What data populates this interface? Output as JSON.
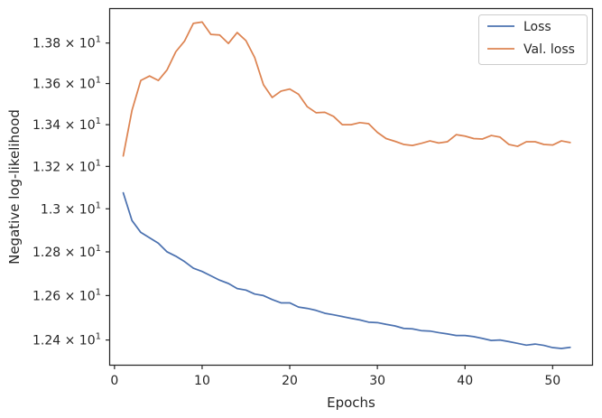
{
  "chart_data": {
    "type": "line",
    "title": "",
    "xlabel": "Epochs",
    "ylabel": "Negative log-likelihood",
    "x": [
      1,
      2,
      3,
      4,
      5,
      6,
      7,
      8,
      9,
      10,
      11,
      12,
      13,
      14,
      15,
      16,
      17,
      18,
      19,
      20,
      21,
      22,
      23,
      24,
      25,
      26,
      27,
      28,
      29,
      30,
      31,
      32,
      33,
      34,
      35,
      36,
      37,
      38,
      39,
      40,
      41,
      42,
      43,
      44,
      45,
      46,
      47,
      48,
      49,
      50,
      51,
      52
    ],
    "xlim": [
      -0.5,
      54.5
    ],
    "ylim": [
      12.29,
      13.97
    ],
    "log_scale_y": true,
    "xticks": [
      0,
      10,
      20,
      30,
      40,
      50
    ],
    "xtick_labels": [
      "0",
      "10",
      "20",
      "30",
      "40",
      "50"
    ],
    "yticks": [
      12.4,
      12.6,
      12.8,
      13.0,
      13.2,
      13.4,
      13.6,
      13.8
    ],
    "ytick_labels": [
      {
        "mantissa": "1.24",
        "exponent": "1"
      },
      {
        "mantissa": "1.26",
        "exponent": "1"
      },
      {
        "mantissa": "1.28",
        "exponent": "1"
      },
      {
        "mantissa": "1.3",
        "exponent": "1"
      },
      {
        "mantissa": "1.32",
        "exponent": "1"
      },
      {
        "mantissa": "1.34",
        "exponent": "1"
      },
      {
        "mantissa": "1.36",
        "exponent": "1"
      },
      {
        "mantissa": "1.38",
        "exponent": "1"
      }
    ],
    "grid": false,
    "legend_position": "top-right",
    "series": [
      {
        "name": "Loss",
        "color": "#4c72b0",
        "values": [
          13.075,
          12.945,
          12.89,
          12.865,
          12.84,
          12.8,
          12.78,
          12.755,
          12.725,
          12.71,
          12.69,
          12.67,
          12.655,
          12.632,
          12.625,
          12.607,
          12.6,
          12.582,
          12.567,
          12.567,
          12.548,
          12.542,
          12.533,
          12.52,
          12.513,
          12.505,
          12.497,
          12.49,
          12.48,
          12.478,
          12.47,
          12.463,
          12.452,
          12.45,
          12.442,
          12.44,
          12.433,
          12.427,
          12.42,
          12.42,
          12.415,
          12.407,
          12.398,
          12.4,
          12.393,
          12.385,
          12.377,
          12.382,
          12.376,
          12.366,
          12.362,
          12.367
        ]
      },
      {
        "name": "Val. loss",
        "color": "#dd8452",
        "values": [
          13.25,
          13.47,
          13.615,
          13.637,
          13.615,
          13.667,
          13.757,
          13.81,
          13.898,
          13.905,
          13.843,
          13.84,
          13.798,
          13.852,
          13.812,
          13.728,
          13.594,
          13.532,
          13.563,
          13.573,
          13.548,
          13.487,
          13.458,
          13.46,
          13.44,
          13.4,
          13.4,
          13.41,
          13.405,
          13.363,
          13.333,
          13.32,
          13.305,
          13.3,
          13.31,
          13.322,
          13.312,
          13.318,
          13.352,
          13.345,
          13.333,
          13.331,
          13.348,
          13.34,
          13.305,
          13.296,
          13.318,
          13.318,
          13.305,
          13.302,
          13.322,
          13.314
        ]
      }
    ]
  }
}
